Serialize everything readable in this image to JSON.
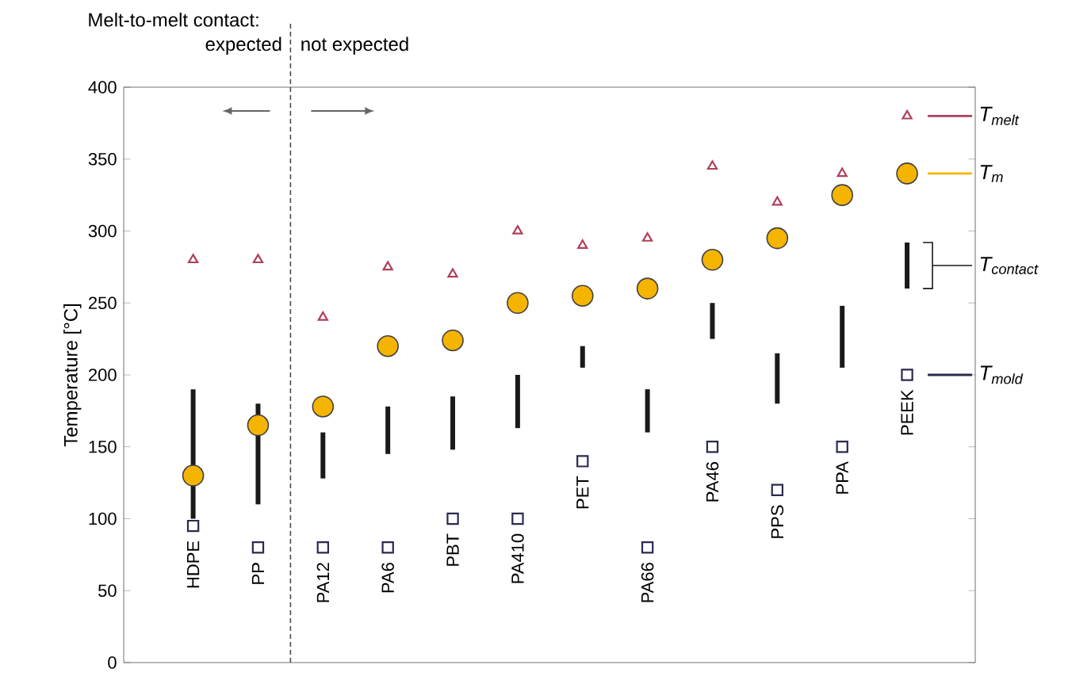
{
  "chart_data": {
    "type": "scatter",
    "categories": [
      "HDPE",
      "PP",
      "PA12",
      "PA6",
      "PBT",
      "PA410",
      "PET",
      "PA66",
      "PA46",
      "PPS",
      "PPA",
      "PEEK"
    ],
    "ylabel": "Temperature [°C]",
    "ylim": [
      0,
      400
    ],
    "yticks": [
      0,
      50,
      100,
      150,
      200,
      250,
      300,
      350,
      400
    ],
    "tick_labels": "y",
    "legend": "right",
    "series": [
      {
        "name": "T$_{melt}$",
        "marker": "triangle",
        "color": "#b0405a",
        "values": [
          280,
          280,
          240,
          275,
          270,
          300,
          290,
          295,
          345,
          320,
          340,
          380
        ]
      },
      {
        "name": "T$_{m}$",
        "marker": "circle",
        "color": "#f5b400",
        "values": [
          130,
          165,
          178,
          220,
          224,
          250,
          255,
          260,
          280,
          295,
          325,
          340
        ]
      },
      {
        "name": "T$_{contact}$",
        "type": "bar",
        "color": "#1a1a1a",
        "base": [
          100,
          110,
          128,
          145,
          148,
          163,
          205,
          160,
          225,
          180,
          205,
          260
        ],
        "values": [
          90,
          70,
          32,
          33,
          37,
          37,
          15,
          30,
          25,
          35,
          43,
          32
        ]
      },
      {
        "name": "T$_{mold}$",
        "marker": "square",
        "color": "#2a2a50",
        "values": [
          95,
          80,
          80,
          80,
          100,
          100,
          140,
          80,
          150,
          120,
          150,
          200
        ]
      }
    ],
    "annotations": [
      "Melt-to-melt contact:",
      "expected",
      "not expected"
    ]
  }
}
